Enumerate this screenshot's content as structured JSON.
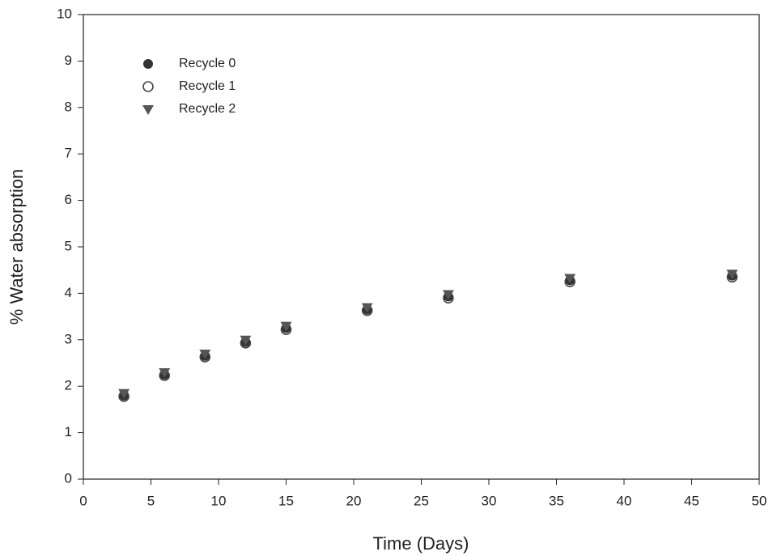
{
  "chart_data": {
    "type": "scatter",
    "x_label": "Time  (Days)",
    "y_label": "% Water  absorption",
    "x": [
      3,
      6,
      9,
      12,
      15,
      21,
      27,
      36,
      48
    ],
    "series": [
      {
        "name": "Recycle 0",
        "color": "#333333",
        "marker": "filled-circle",
        "values": [
          1.8,
          2.25,
          2.65,
          2.95,
          3.25,
          3.65,
          3.93,
          4.28,
          4.38
        ]
      },
      {
        "name": "Recycle 1",
        "color": "#444444",
        "marker": "open-circle",
        "values": [
          1.78,
          2.23,
          2.63,
          2.93,
          3.22,
          3.63,
          3.9,
          4.25,
          4.35
        ]
      },
      {
        "name": "Recycle 2",
        "color": "#555555",
        "marker": "down-triangle",
        "values": [
          1.85,
          2.3,
          2.7,
          3.0,
          3.3,
          3.7,
          3.98,
          4.33,
          4.42
        ]
      }
    ],
    "xlim": [
      0,
      50
    ],
    "xticks": [
      0,
      5,
      10,
      15,
      20,
      25,
      30,
      35,
      40,
      45,
      50
    ],
    "ylim": [
      0,
      10
    ],
    "yticks": [
      0,
      1,
      2,
      3,
      4,
      5,
      6,
      7,
      8,
      9,
      10
    ],
    "legend": "upper-left"
  }
}
